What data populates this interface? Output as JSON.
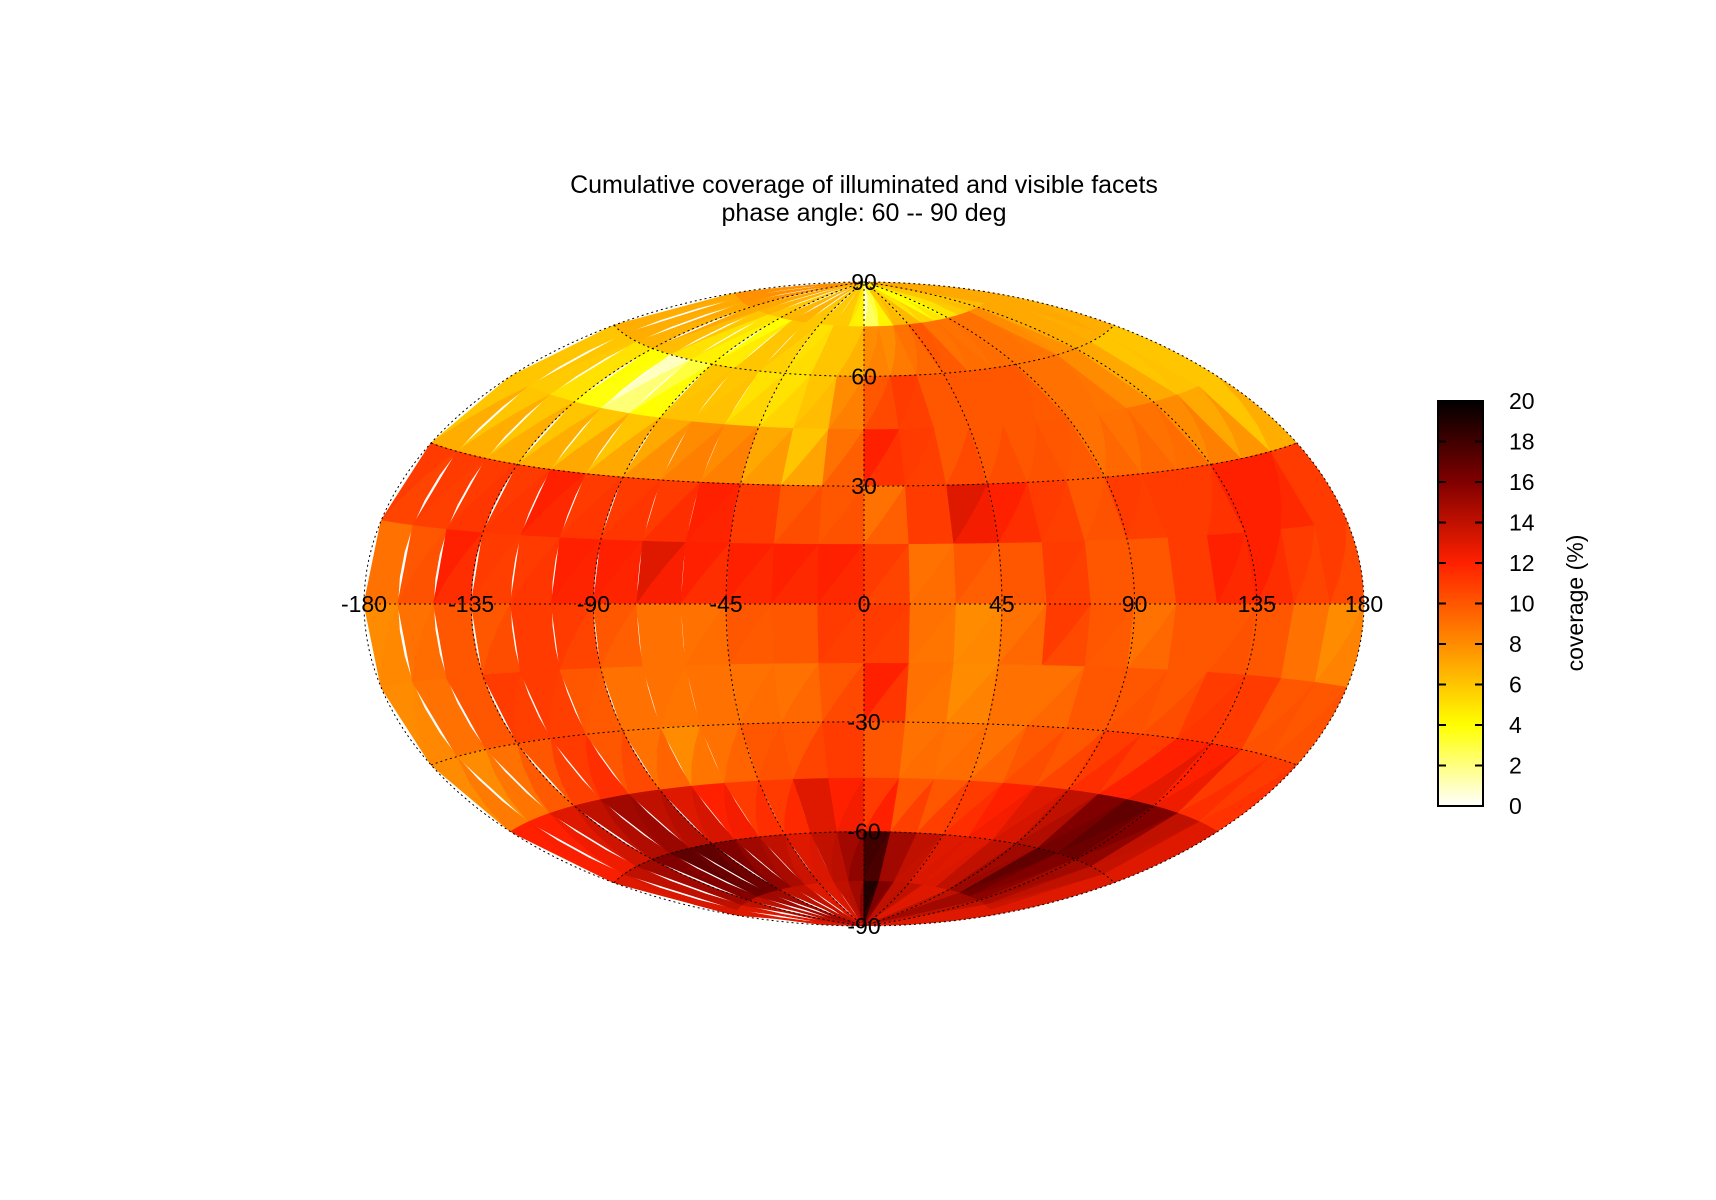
{
  "chart_data": {
    "type": "heatmap",
    "projection": "hammer-aitoff",
    "title": "Cumulative coverage of illuminated and visible facets",
    "subtitle": "phase angle:  60 --  90 deg",
    "x_ticks": [
      "-180",
      "-135",
      "-90",
      "-45",
      "0",
      "45",
      "90",
      "135",
      "180"
    ],
    "y_ticks": [
      "90",
      "60",
      "30",
      "-30",
      "-60",
      "-90"
    ],
    "xlim": [
      -180,
      180
    ],
    "ylim": [
      -90,
      90
    ],
    "grid": true,
    "colorbar": {
      "label": "coverage (%)",
      "range": [
        0,
        20
      ],
      "ticks": [
        "0",
        "2",
        "4",
        "6",
        "8",
        "10",
        "12",
        "14",
        "16",
        "18",
        "20"
      ],
      "colormap": [
        "#ffffff",
        "#ffff00",
        "#ff8c00",
        "#ff2000",
        "#800000",
        "#000000"
      ],
      "position": "right"
    },
    "lon_centers": [
      -172.5,
      -157.5,
      -142.5,
      -127.5,
      -112.5,
      -97.5,
      -82.5,
      -67.5,
      -52.5,
      -37.5,
      -22.5,
      -7.5,
      7.5,
      22.5,
      37.5,
      52.5,
      67.5,
      82.5,
      97.5,
      112.5,
      127.5,
      142.5,
      157.5,
      172.5
    ],
    "lat_centers": [
      82.5,
      67.5,
      52.5,
      37.5,
      22.5,
      7.5,
      -7.5,
      -22.5,
      -37.5,
      -52.5,
      -67.5,
      -82.5
    ],
    "values": [
      [
        8,
        8,
        8,
        7,
        7,
        6,
        7,
        7,
        6,
        6,
        6,
        5,
        1,
        3,
        6,
        6,
        5,
        4,
        4,
        5,
        6,
        6,
        7,
        7
      ],
      [
        7,
        7,
        7,
        7,
        6,
        5,
        4,
        6,
        6,
        5,
        6,
        6,
        8,
        8,
        9,
        10,
        9,
        9,
        9,
        9,
        8,
        7,
        7,
        7
      ],
      [
        6,
        6,
        5,
        4,
        1,
        3,
        6,
        6,
        5,
        5,
        6,
        8,
        10,
        11,
        10,
        10,
        10,
        10,
        9,
        9,
        8,
        7,
        6,
        6
      ],
      [
        6,
        6,
        6,
        6,
        6,
        6,
        7,
        8,
        8,
        7,
        6,
        9,
        12,
        11,
        10,
        10,
        10,
        10,
        9,
        9,
        9,
        8,
        7,
        6
      ],
      [
        11,
        11,
        11,
        11,
        12,
        11,
        11,
        11,
        12,
        11,
        10,
        10,
        9,
        11,
        13,
        12,
        11,
        10,
        11,
        11,
        11,
        12,
        12,
        11
      ],
      [
        9,
        10,
        12,
        11,
        11,
        12,
        12,
        13,
        12,
        12,
        12,
        12,
        11,
        9,
        10,
        10,
        11,
        10,
        10,
        11,
        12,
        12,
        11,
        11
      ],
      [
        8,
        9,
        10,
        10,
        11,
        11,
        10,
        9,
        9,
        10,
        10,
        11,
        11,
        9,
        8,
        9,
        11,
        10,
        9,
        10,
        10,
        10,
        9,
        8
      ],
      [
        8,
        9,
        10,
        11,
        11,
        10,
        9,
        9,
        9,
        9,
        9,
        10,
        12,
        9,
        8,
        9,
        9,
        10,
        10,
        10,
        11,
        11,
        10,
        10
      ],
      [
        8,
        8,
        9,
        10,
        11,
        10,
        9,
        8,
        9,
        10,
        10,
        11,
        10,
        9,
        9,
        9,
        10,
        10,
        11,
        11,
        12,
        12,
        11,
        11
      ],
      [
        12,
        12,
        13,
        14,
        15,
        14,
        13,
        12,
        11,
        11,
        13,
        12,
        11,
        10,
        10,
        11,
        12,
        13,
        14,
        16,
        17,
        16,
        14,
        13
      ],
      [
        13,
        14,
        15,
        16,
        17,
        17,
        16,
        15,
        14,
        13,
        14,
        15,
        18,
        15,
        14,
        13,
        13,
        14,
        15,
        17,
        16,
        15,
        14,
        13
      ],
      [
        13,
        13,
        14,
        14,
        15,
        15,
        14,
        14,
        13,
        13,
        14,
        15,
        19,
        16,
        14,
        14,
        13,
        13,
        14,
        15,
        15,
        14,
        13,
        13
      ]
    ]
  }
}
